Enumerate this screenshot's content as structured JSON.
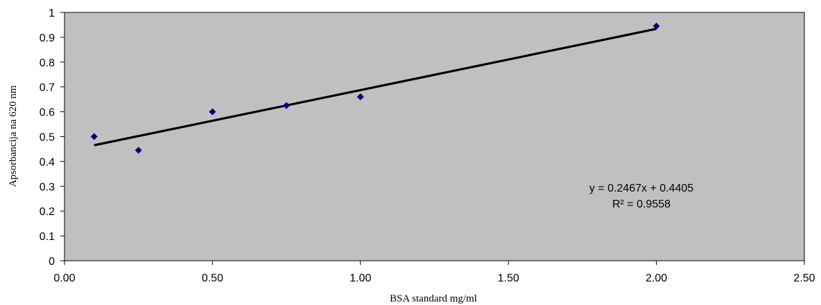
{
  "chart_data": {
    "type": "scatter",
    "xlabel": "BSA standard  mg/ml",
    "ylabel": "Apsorbancija na 620 nm",
    "xlim": [
      0,
      2.5
    ],
    "ylim": [
      0,
      1
    ],
    "x_ticks": [
      "0.00",
      "0.50",
      "1.00",
      "1.50",
      "2.00",
      "2.50"
    ],
    "y_ticks": [
      "0",
      "0.1",
      "0.2",
      "0.3",
      "0.4",
      "0.5",
      "0.6",
      "0.7",
      "0.8",
      "0.9",
      "1"
    ],
    "grid": false,
    "plot_background": "#c0c0c0",
    "marker_color": "#000080",
    "marker_shape": "diamond",
    "trendline_color": "#000000",
    "series": [
      {
        "x": [
          0.1,
          0.25,
          0.5,
          0.75,
          1.0,
          2.0
        ],
        "y": [
          0.5,
          0.445,
          0.6,
          0.625,
          0.66,
          0.945
        ]
      }
    ],
    "trendline": {
      "type": "linear",
      "slope": 0.2467,
      "intercept": 0.4405,
      "x_range": [
        0.1,
        2.0
      ],
      "equation_label": "y = 0.2467x + 0.4405",
      "r2_label": "R² = 0.9558"
    }
  }
}
